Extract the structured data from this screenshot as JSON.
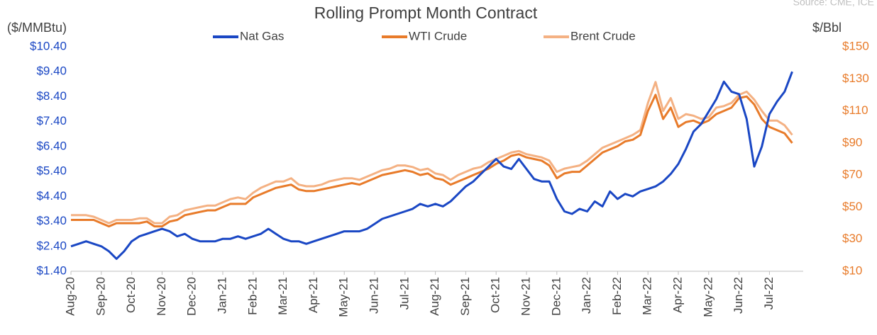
{
  "chart_data": {
    "type": "line",
    "title": "Rolling Prompt Month Contract",
    "source": "Source: CME, ICE",
    "ylabel": "($/MMBtu)",
    "y2label": "$/Bbl",
    "legend": "top",
    "ylim": [
      1.4,
      10.4
    ],
    "yticks": [
      {
        "value": 1.4,
        "label": "$1.40"
      },
      {
        "value": 2.4,
        "label": "$2.40"
      },
      {
        "value": 3.4,
        "label": "$3.40"
      },
      {
        "value": 4.4,
        "label": "$4.40"
      },
      {
        "value": 5.4,
        "label": "$5.40"
      },
      {
        "value": 6.4,
        "label": "$6.40"
      },
      {
        "value": 7.4,
        "label": "$7.40"
      },
      {
        "value": 8.4,
        "label": "$8.40"
      },
      {
        "value": 9.4,
        "label": "$9.40"
      },
      {
        "value": 10.4,
        "label": "$10.40"
      }
    ],
    "y2lim": [
      10,
      150
    ],
    "y2ticks": [
      {
        "value": 10,
        "label": "$10"
      },
      {
        "value": 30,
        "label": "$30"
      },
      {
        "value": 50,
        "label": "$50"
      },
      {
        "value": 70,
        "label": "$70"
      },
      {
        "value": 90,
        "label": "$90"
      },
      {
        "value": 110,
        "label": "$110"
      },
      {
        "value": 130,
        "label": "$130"
      },
      {
        "value": 150,
        "label": "$150"
      }
    ],
    "categories": [
      "Aug-20",
      null,
      null,
      null,
      "Sep-20",
      null,
      null,
      null,
      "Oct-20",
      null,
      null,
      null,
      "Nov-20",
      null,
      null,
      null,
      "Dec-20",
      null,
      null,
      null,
      "Jan-21",
      null,
      null,
      null,
      "Feb-21",
      null,
      null,
      null,
      "Mar-21",
      null,
      null,
      null,
      "Apr-21",
      null,
      null,
      null,
      "May-21",
      null,
      null,
      null,
      "Jun-21",
      null,
      null,
      null,
      "Jul-21",
      null,
      null,
      null,
      "Aug-21",
      null,
      null,
      null,
      "Sep-21",
      null,
      null,
      null,
      "Oct-21",
      null,
      null,
      null,
      "Nov-21",
      null,
      null,
      null,
      "Dec-21",
      null,
      null,
      null,
      "Jan-22",
      null,
      null,
      null,
      "Feb-22",
      null,
      null,
      null,
      "Mar-22",
      null,
      null,
      null,
      "Apr-22",
      null,
      null,
      null,
      "May-22",
      null,
      null,
      null,
      "Jun-22",
      null,
      null,
      null,
      "Jul-22",
      null,
      null,
      null
    ],
    "series": [
      {
        "name": "Nat Gas",
        "color": "#1a47c4",
        "axis": "y",
        "values": [
          2.4,
          2.5,
          2.6,
          2.5,
          2.4,
          2.2,
          1.9,
          2.2,
          2.6,
          2.8,
          2.9,
          3.0,
          3.1,
          3.0,
          2.8,
          2.9,
          2.7,
          2.6,
          2.6,
          2.6,
          2.7,
          2.7,
          2.8,
          2.7,
          2.8,
          2.9,
          3.1,
          2.9,
          2.7,
          2.6,
          2.6,
          2.5,
          2.6,
          2.7,
          2.8,
          2.9,
          3.0,
          3.0,
          3.0,
          3.1,
          3.3,
          3.5,
          3.6,
          3.7,
          3.8,
          3.9,
          4.1,
          4.0,
          4.1,
          4.0,
          4.2,
          4.5,
          4.8,
          5.0,
          5.3,
          5.6,
          5.9,
          5.6,
          5.5,
          5.9,
          5.5,
          5.1,
          5.0,
          5.0,
          4.3,
          3.8,
          3.7,
          3.9,
          3.8,
          4.2,
          4.0,
          4.6,
          4.3,
          4.5,
          4.4,
          4.6,
          4.7,
          4.8,
          5.0,
          5.3,
          5.7,
          6.3,
          7.0,
          7.3,
          7.8,
          8.3,
          9.0,
          8.6,
          8.5,
          7.5,
          5.6,
          6.4,
          7.7,
          8.2,
          8.6,
          9.4
        ]
      },
      {
        "name": "WTI Crude",
        "color": "#e87b2a",
        "axis": "y2",
        "values": [
          42,
          42,
          42,
          42,
          40,
          38,
          40,
          40,
          40,
          40,
          41,
          38,
          38,
          41,
          42,
          45,
          46,
          47,
          48,
          48,
          50,
          52,
          52,
          52,
          56,
          58,
          60,
          62,
          63,
          64,
          61,
          60,
          60,
          61,
          62,
          63,
          64,
          65,
          64,
          66,
          68,
          70,
          71,
          72,
          73,
          72,
          70,
          71,
          68,
          67,
          64,
          66,
          68,
          70,
          72,
          74,
          77,
          79,
          82,
          83,
          81,
          80,
          79,
          76,
          68,
          71,
          72,
          72,
          76,
          80,
          84,
          86,
          88,
          91,
          92,
          95,
          110,
          120,
          105,
          112,
          100,
          103,
          104,
          102,
          104,
          108,
          110,
          112,
          118,
          119,
          114,
          105,
          100,
          98,
          96,
          90
        ]
      },
      {
        "name": "Brent Crude",
        "color": "#f4b183",
        "axis": "y2",
        "values": [
          45,
          45,
          45,
          44,
          42,
          40,
          42,
          42,
          42,
          43,
          43,
          40,
          40,
          44,
          45,
          48,
          49,
          50,
          51,
          51,
          53,
          55,
          56,
          55,
          59,
          62,
          64,
          66,
          66,
          68,
          64,
          63,
          63,
          64,
          66,
          67,
          68,
          68,
          67,
          69,
          71,
          73,
          74,
          76,
          76,
          75,
          73,
          74,
          71,
          70,
          67,
          70,
          72,
          74,
          75,
          78,
          80,
          82,
          84,
          85,
          83,
          82,
          81,
          79,
          72,
          74,
          75,
          76,
          79,
          83,
          87,
          89,
          91,
          93,
          95,
          98,
          115,
          128,
          110,
          118,
          105,
          108,
          107,
          105,
          106,
          112,
          113,
          115,
          120,
          122,
          117,
          110,
          104,
          104,
          101,
          95
        ]
      }
    ]
  }
}
